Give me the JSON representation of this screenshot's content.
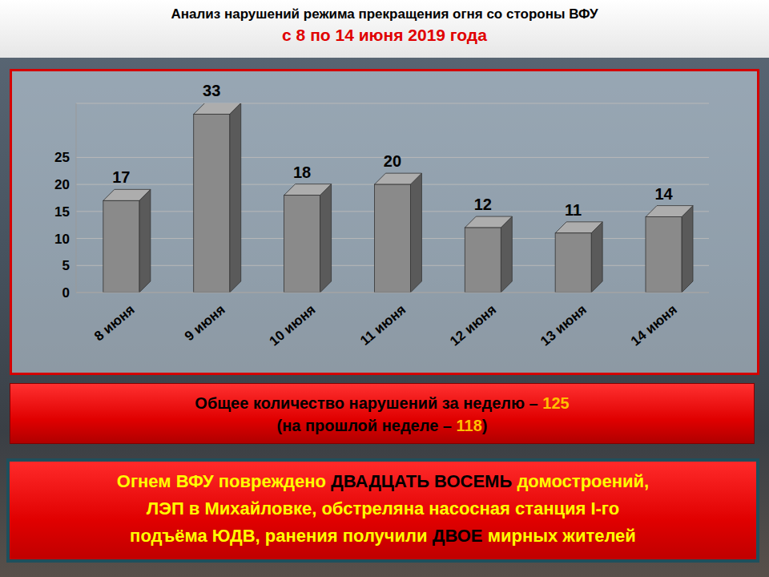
{
  "chart_data": {
    "type": "bar",
    "title": "Анализ нарушений режима прекращения огня со стороны ВФУ",
    "subtitle": "с 8 по 14 июня 2019 года",
    "categories": [
      "8 июня",
      "9 июня",
      "10 июня",
      "11 июня",
      "12 июня",
      "13 июня",
      "14 июня"
    ],
    "values": [
      17,
      33,
      18,
      20,
      12,
      11,
      14
    ],
    "color": "#8a8a8a",
    "ylim": [
      0,
      35
    ],
    "yticks": [
      0,
      5,
      10,
      15,
      20,
      25
    ],
    "grid": true,
    "data_labels": true
  },
  "summary": [
    [
      {
        "text": "Общее количество нарушений за неделю – ",
        "color": "#000000"
      },
      {
        "text": "125",
        "color": "#ffc000"
      }
    ],
    [
      {
        "text": "(на прошлой неделе – ",
        "color": "#000000"
      },
      {
        "text": "118",
        "color": "#ffc000"
      },
      {
        "text": ")",
        "color": "#000000"
      }
    ]
  ],
  "note": [
    [
      {
        "text": "Огнем ВФУ повреждено ",
        "color": "#ffff00"
      },
      {
        "text": "ДВАДЦАТЬ ВОСЕМЬ",
        "color": "#000000"
      },
      {
        "text": " домостроений,",
        "color": "#ffff00"
      }
    ],
    [
      {
        "text": "ЛЭП в Михайловке, обстреляна насосная станция I-го",
        "color": "#ffff00"
      }
    ],
    [
      {
        "text": "подъёма ЮДВ, ранения получили ",
        "color": "#ffff00"
      },
      {
        "text": "ДВОЕ",
        "color": "#000000"
      },
      {
        "text": " мирных жителей",
        "color": "#ffff00"
      }
    ]
  ]
}
